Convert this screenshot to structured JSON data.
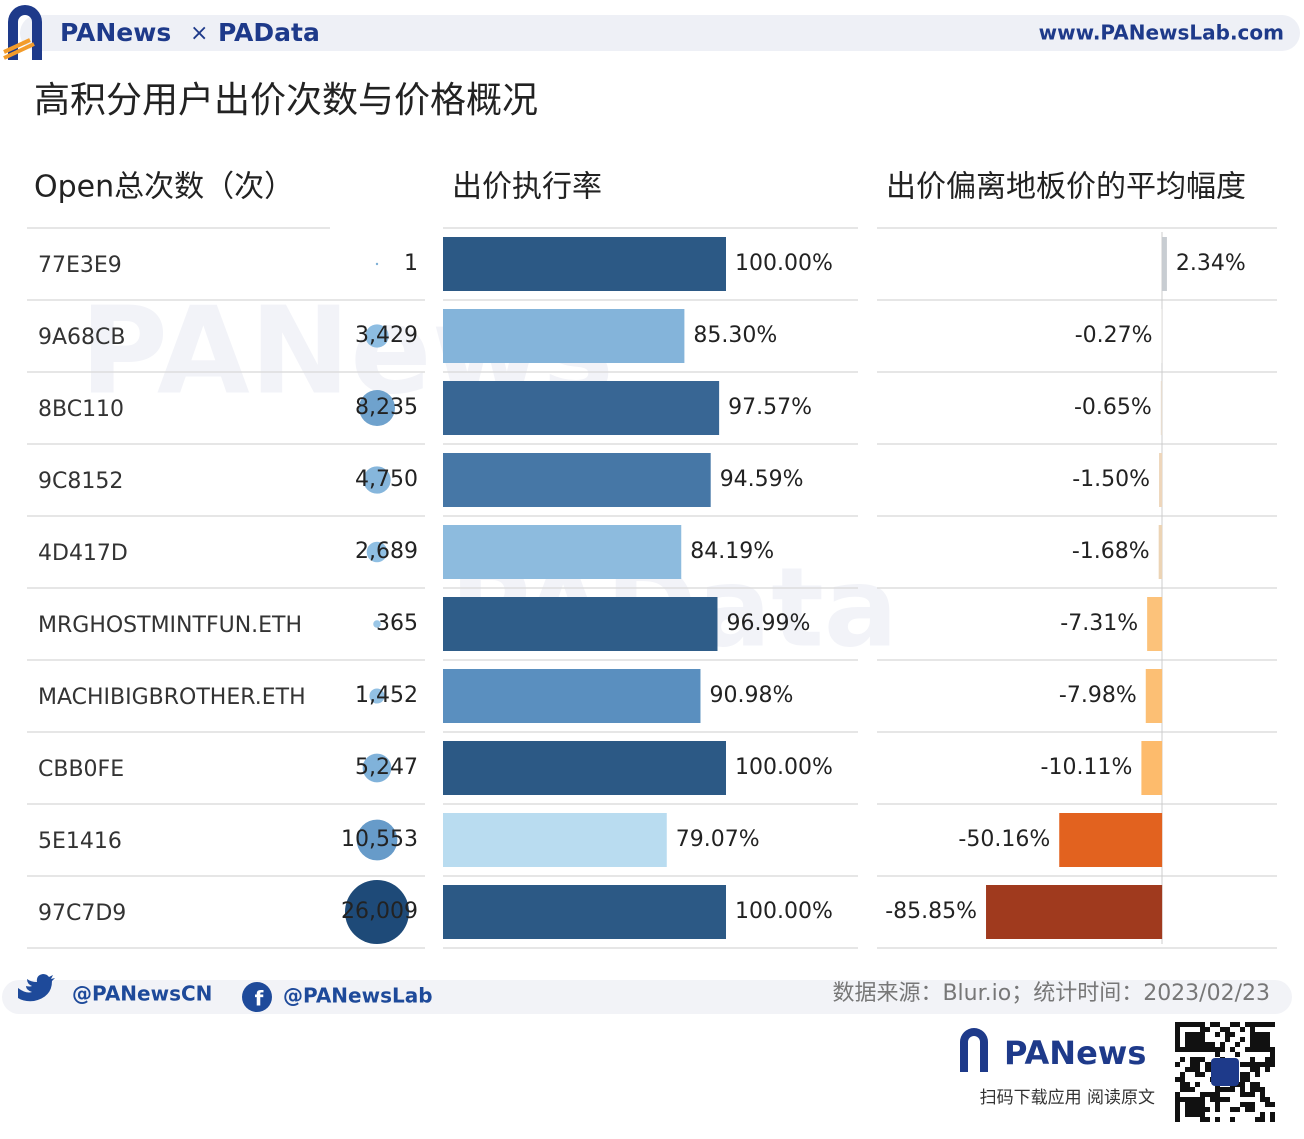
{
  "header": {
    "brand_left": "PANews",
    "times": "×",
    "brand_right": "PAData",
    "url": "www.PANewsLab.com"
  },
  "watermarks": [
    "PANews",
    "PAData"
  ],
  "chart_data": [
    {
      "type": "bubble",
      "title": "高积分用户出价次数与价格概况",
      "subtitle": "Open总次数（次）",
      "categories": [
        "77E3E9",
        "9A68CB",
        "8BC110",
        "9C8152",
        "4D417D",
        "MRGHOSTMINTFUN.ETH",
        "MACHIBIGBROTHER.ETH",
        "CBB0FE",
        "5E1416",
        "97C7D9"
      ],
      "values": [
        1,
        3429,
        8235,
        4750,
        2689,
        365,
        1452,
        5247,
        10553,
        26009
      ],
      "value_labels": [
        "1",
        "3,429",
        "8,235",
        "4,750",
        "2,689",
        "365",
        "1,452",
        "5,247",
        "10,553",
        "26,009"
      ],
      "colors": [
        "#7fb0d6",
        "#8dbde2",
        "#6fa2cd",
        "#86b6dc",
        "#8fbfe3",
        "#9ac6e6",
        "#92c0e3",
        "#80b2da",
        "#679bc9",
        "#1e4a78"
      ]
    },
    {
      "type": "hbar",
      "subtitle": "出价执行率",
      "xlim": [
        0,
        100
      ],
      "values": [
        100.0,
        85.3,
        97.57,
        94.59,
        84.19,
        96.99,
        90.98,
        100.0,
        79.07,
        100.0
      ],
      "value_labels": [
        "100.00%",
        "85.30%",
        "97.57%",
        "94.59%",
        "84.19%",
        "96.99%",
        "90.98%",
        "100.00%",
        "79.07%",
        "100.00%"
      ],
      "colors": [
        "#2c5985",
        "#84b4da",
        "#386694",
        "#4677a6",
        "#8dbbde",
        "#2f5d89",
        "#5a8fbf",
        "#2c5985",
        "#b9dcf0",
        "#2c5985"
      ]
    },
    {
      "type": "hbar",
      "subtitle": "出价偏离地板价的平均幅度",
      "xlim": [
        -139,
        56
      ],
      "values": [
        2.34,
        -0.27,
        -0.65,
        -1.5,
        -1.68,
        -7.31,
        -7.98,
        -10.11,
        -50.16,
        -85.85
      ],
      "value_labels": [
        "2.34%",
        "-0.27%",
        "-0.65%",
        "-1.50%",
        "-1.68%",
        "-7.31%",
        "-7.98%",
        "-10.11%",
        "-50.16%",
        "-85.85%"
      ],
      "colors": [
        "#c8cdd2",
        "#e6e2dc",
        "#e8ddd0",
        "#eed6bb",
        "#ecd4b5",
        "#fcc27a",
        "#fcbf74",
        "#fdbb6c",
        "#e2621f",
        "#a03a1e"
      ]
    }
  ],
  "footer": {
    "twitter": "@PANewsCN",
    "facebook": "@PANewsLab",
    "source": "数据来源：Blur.io；统计时间：2023/02/23",
    "app_brand": "PANews",
    "app_text": "扫码下载应用  阅读原文"
  }
}
